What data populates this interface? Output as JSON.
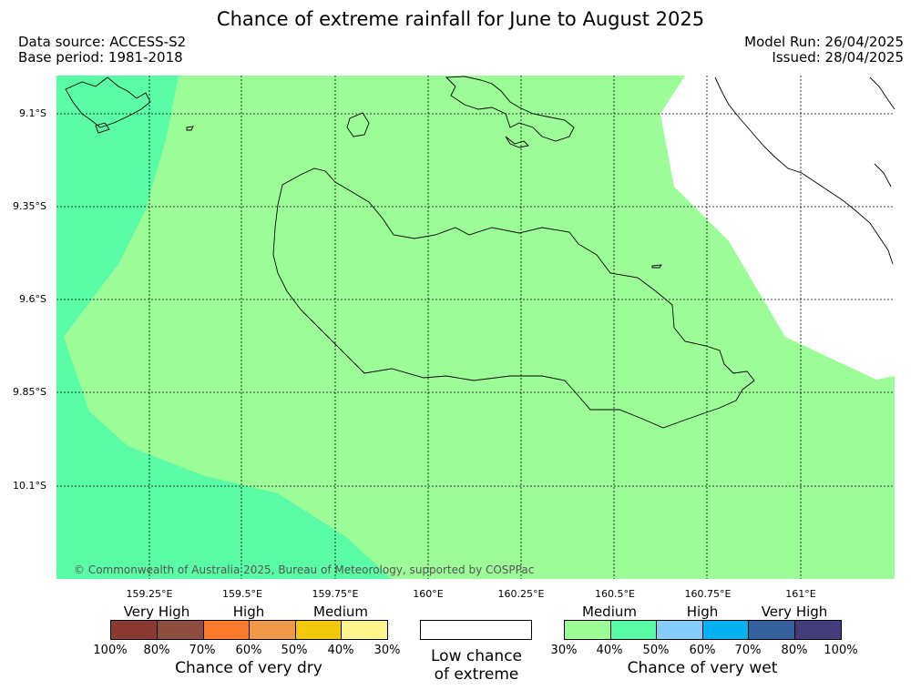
{
  "title": "Chance of extreme rainfall for June to August 2025",
  "meta": {
    "data_source": "Data source: ACCESS-S2",
    "base_period": "Base period: 1981-2018",
    "model_run": "Model Run: 26/04/2025",
    "issued": "Issued: 28/04/2025"
  },
  "map": {
    "lat_labels": [
      "9.1°S",
      "9.35°S",
      "9.6°S",
      "9.85°S",
      "10.1°S"
    ],
    "lon_labels": [
      "159.25°E",
      "159.5°E",
      "159.75°E",
      "160°E",
      "160.25°E",
      "160.5°E",
      "160.75°E",
      "161°E"
    ],
    "copyright": "© Commonwealth of Australia 2025, Bureau of Meteorology, supported by COSPPac",
    "colors": {
      "medium_wet": "#9cfc98",
      "high_wet_zone": "#5afca5",
      "no_data": "#ffffff"
    }
  },
  "legend": {
    "dry": {
      "categories": [
        "Very High",
        "High",
        "Medium"
      ],
      "swatches": [
        "#8b3a32",
        "#8d4e3f",
        "#fd7b2b",
        "#ef9a48",
        "#f2c80c",
        "#fdf58d"
      ],
      "percents": [
        "100%",
        "80%",
        "70%",
        "60%",
        "50%",
        "40%",
        "30%"
      ],
      "title": "Chance of very dry"
    },
    "low": {
      "line1": "Low chance",
      "line2": "of extreme"
    },
    "wet": {
      "categories": [
        "Medium",
        "High",
        "Very High"
      ],
      "swatches": [
        "#9cfc98",
        "#5afca5",
        "#86ccfa",
        "#04b0ef",
        "#34609d",
        "#433d7a"
      ],
      "percents": [
        "30%",
        "40%",
        "50%",
        "60%",
        "70%",
        "80%",
        "100%"
      ],
      "title": "Chance of very wet"
    }
  }
}
